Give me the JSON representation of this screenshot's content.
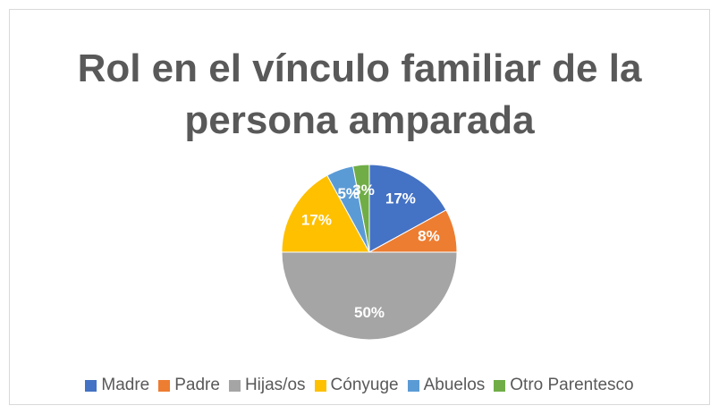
{
  "chart_data": {
    "type": "pie",
    "title": "Rol en el vínculo familiar de la persona amparada",
    "categories": [
      "Madre",
      "Padre",
      "Hijas/os",
      "Cónyuge",
      "Abuelos",
      "Otro Parentesco"
    ],
    "values": [
      17,
      8,
      50,
      17,
      5,
      3
    ],
    "value_labels": [
      "17%",
      "8%",
      "50%",
      "17%",
      "5%",
      "3%"
    ],
    "colors": [
      "#4472c4",
      "#ed7d31",
      "#a5a5a5",
      "#ffc000",
      "#5b9bd5",
      "#70ad47"
    ],
    "legend": "bottom"
  }
}
